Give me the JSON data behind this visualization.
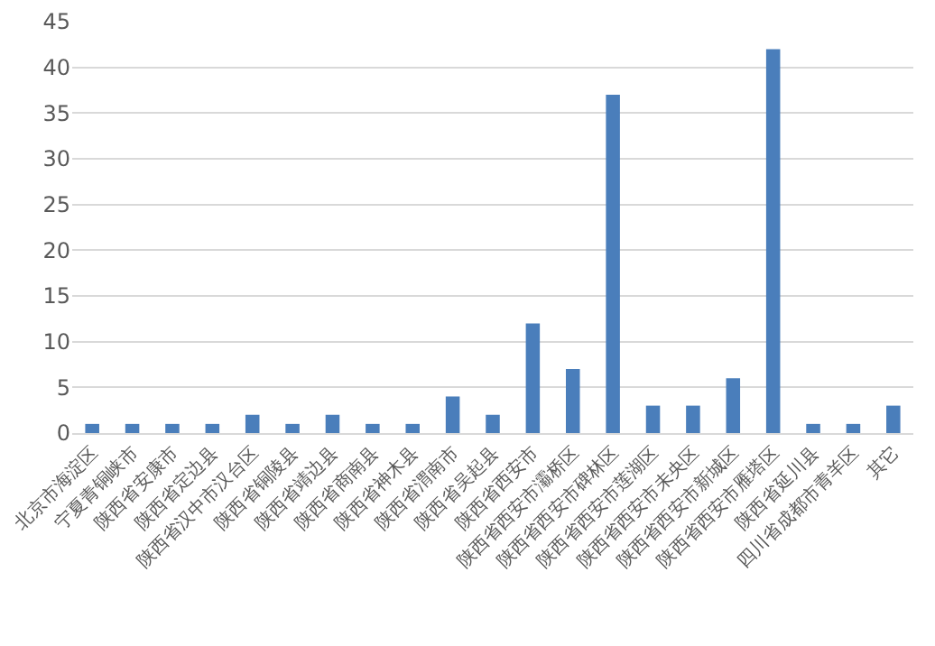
{
  "chart_data": {
    "type": "bar",
    "categories": [
      "北京市海淀区",
      "宁夏青铜峡市",
      "陕西省安康市",
      "陕西省定边县",
      "陕西省汉中市汉台区",
      "陕西省铜陵县",
      "陕西省靖边县",
      "陕西省商南县",
      "陕西省神木县",
      "陕西省渭南市",
      "陕西省吴起县",
      "陕西省西安市",
      "陕西省西安市灞桥区",
      "陕西省西安市碑林区",
      "陕西省西安市莲湖区",
      "陕西省西安市未央区",
      "陕西省西安市新城区",
      "陕西省西安市雁塔区",
      "陕西省延川县",
      "四川省成都市青羊区",
      "其它"
    ],
    "values": [
      1,
      1,
      1,
      1,
      2,
      1,
      2,
      1,
      1,
      4,
      2,
      12,
      7,
      37,
      3,
      3,
      6,
      42,
      1,
      1,
      3
    ],
    "color": "#4a7ebb",
    "ylim": [
      0,
      45
    ],
    "yticks": [
      0,
      5,
      10,
      15,
      20,
      25,
      30,
      35,
      40,
      45
    ],
    "grid": "y"
  }
}
